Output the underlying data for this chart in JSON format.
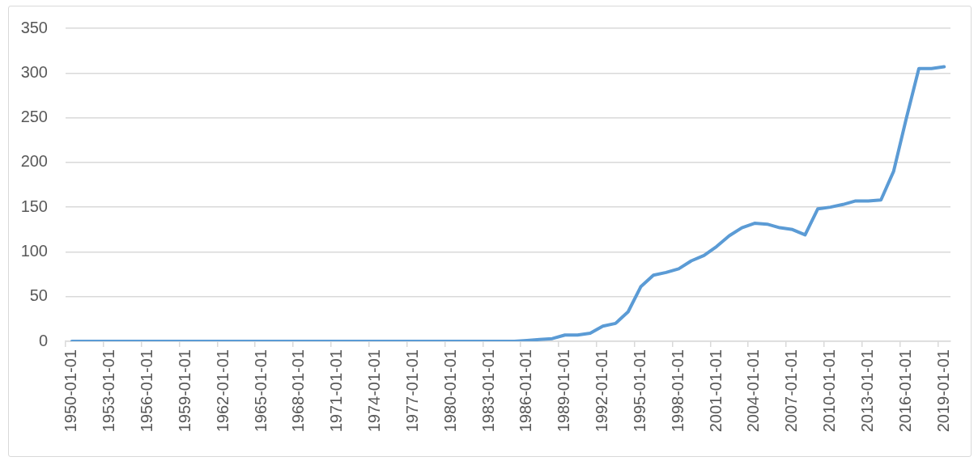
{
  "chart_data": {
    "type": "line",
    "categories": [
      "1950-01-01",
      null,
      null,
      "1953-01-01",
      null,
      null,
      "1956-01-01",
      null,
      null,
      "1959-01-01",
      null,
      null,
      "1962-01-01",
      null,
      null,
      "1965-01-01",
      null,
      null,
      "1968-01-01",
      null,
      null,
      "1971-01-01",
      null,
      null,
      "1974-01-01",
      null,
      null,
      "1977-01-01",
      null,
      null,
      "1980-01-01",
      null,
      null,
      "1983-01-01",
      null,
      null,
      "1986-01-01",
      null,
      null,
      "1989-01-01",
      null,
      null,
      "1992-01-01",
      null,
      null,
      "1995-01-01",
      null,
      null,
      "1998-01-01",
      null,
      null,
      "2001-01-01",
      null,
      null,
      "2004-01-01",
      null,
      null,
      "2007-01-01",
      null,
      null,
      "2010-01-01",
      null,
      null,
      "2013-01-01",
      null,
      null,
      "2016-01-01",
      null,
      null,
      "2019-01-01"
    ],
    "values": [
      0,
      0,
      0,
      0,
      0,
      0,
      0,
      0,
      0,
      0,
      0,
      0,
      0,
      0,
      0,
      0,
      0,
      0,
      0,
      0,
      0,
      0,
      0,
      0,
      0,
      0,
      0,
      0,
      0,
      0,
      0,
      0,
      0,
      0,
      0,
      0,
      1,
      2,
      3,
      7,
      7,
      9,
      17,
      20,
      33,
      61,
      74,
      77,
      81,
      90,
      96,
      106,
      118,
      127,
      132,
      131,
      127,
      125,
      119,
      148,
      150,
      153,
      157,
      157,
      158,
      190,
      249,
      305,
      305,
      307
    ],
    "color": "#5b9bd5",
    "ylim": [
      0,
      350
    ],
    "yticks": [
      0,
      50,
      100,
      150,
      200,
      250,
      300,
      350
    ],
    "grid": "y",
    "marker": "none"
  }
}
